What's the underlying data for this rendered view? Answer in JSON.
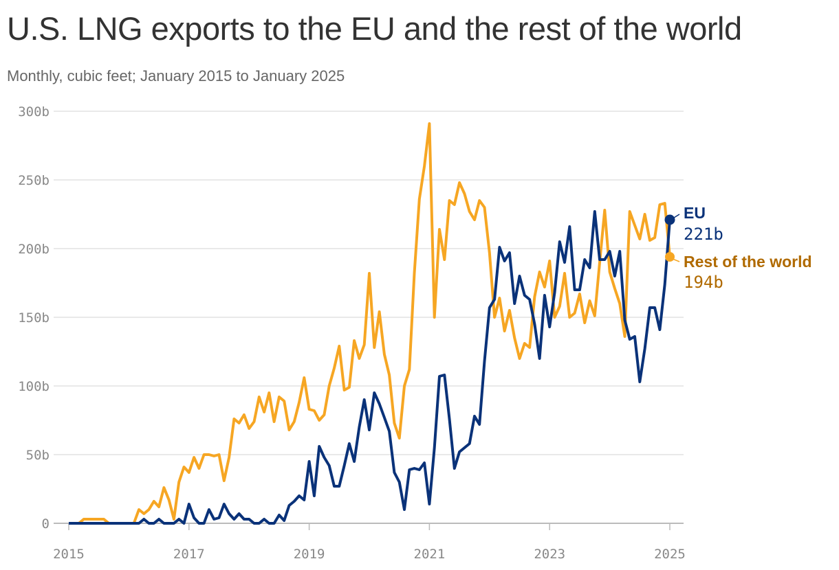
{
  "title": "U.S. LNG exports to the EU and the rest of the world",
  "subtitle": "Monthly, cubic feet; January 2015 to January 2025",
  "colors": {
    "eu": "#0a3279",
    "rest": "#f6a623",
    "rest_label": "#b06a00",
    "grid": "#e2e2e2",
    "axis": "#bbbbbb"
  },
  "chart_data": {
    "type": "line",
    "title": "U.S. LNG exports to the EU and the rest of the world",
    "subtitle": "Monthly, cubic feet; January 2015 to January 2025",
    "x_range": [
      "2015-01",
      "2025-01"
    ],
    "x_ticks": [
      "2015",
      "2017",
      "2019",
      "2021",
      "2023",
      "2025"
    ],
    "ylim": [
      0,
      300
    ],
    "y_ticks": [
      0,
      50,
      100,
      150,
      200,
      250,
      300
    ],
    "y_tick_labels": [
      "0",
      "50b",
      "100b",
      "150b",
      "200b",
      "250b",
      "300b"
    ],
    "grid": true,
    "legend": "direct labels at line ends",
    "series": [
      {
        "name": "EU",
        "end_label": "221b",
        "points": [
          [
            "2015-01",
            0
          ],
          [
            "2015-06",
            0
          ],
          [
            "2015-12",
            0
          ],
          [
            "2016-03",
            0
          ],
          [
            "2016-04",
            3
          ],
          [
            "2016-05",
            0
          ],
          [
            "2016-06",
            0
          ],
          [
            "2016-07",
            3
          ],
          [
            "2016-08",
            0
          ],
          [
            "2016-09",
            0
          ],
          [
            "2016-10",
            0
          ],
          [
            "2016-11",
            3
          ],
          [
            "2016-12",
            0
          ],
          [
            "2017-01",
            14
          ],
          [
            "2017-02",
            4
          ],
          [
            "2017-03",
            0
          ],
          [
            "2017-04",
            0
          ],
          [
            "2017-05",
            10
          ],
          [
            "2017-06",
            3
          ],
          [
            "2017-07",
            4
          ],
          [
            "2017-08",
            14
          ],
          [
            "2017-09",
            7
          ],
          [
            "2017-10",
            3
          ],
          [
            "2017-11",
            7
          ],
          [
            "2017-12",
            3
          ],
          [
            "2018-01",
            3
          ],
          [
            "2018-02",
            0
          ],
          [
            "2018-03",
            0
          ],
          [
            "2018-04",
            3
          ],
          [
            "2018-05",
            0
          ],
          [
            "2018-06",
            0
          ],
          [
            "2018-07",
            6
          ],
          [
            "2018-08",
            2
          ],
          [
            "2018-09",
            13
          ],
          [
            "2018-10",
            16
          ],
          [
            "2018-11",
            20
          ],
          [
            "2018-12",
            17
          ],
          [
            "2019-01",
            45
          ],
          [
            "2019-02",
            20
          ],
          [
            "2019-03",
            56
          ],
          [
            "2019-04",
            48
          ],
          [
            "2019-05",
            42
          ],
          [
            "2019-06",
            27
          ],
          [
            "2019-07",
            27
          ],
          [
            "2019-08",
            42
          ],
          [
            "2019-09",
            58
          ],
          [
            "2019-10",
            45
          ],
          [
            "2019-11",
            70
          ],
          [
            "2019-12",
            90
          ],
          [
            "2020-01",
            68
          ],
          [
            "2020-02",
            95
          ],
          [
            "2020-03",
            87
          ],
          [
            "2020-04",
            77
          ],
          [
            "2020-05",
            67
          ],
          [
            "2020-06",
            37
          ],
          [
            "2020-07",
            30
          ],
          [
            "2020-08",
            10
          ],
          [
            "2020-09",
            39
          ],
          [
            "2020-10",
            40
          ],
          [
            "2020-11",
            39
          ],
          [
            "2020-12",
            44
          ],
          [
            "2021-01",
            14
          ],
          [
            "2021-02",
            55
          ],
          [
            "2021-03",
            107
          ],
          [
            "2021-04",
            108
          ],
          [
            "2021-05",
            76
          ],
          [
            "2021-06",
            40
          ],
          [
            "2021-07",
            52
          ],
          [
            "2021-08",
            55
          ],
          [
            "2021-09",
            58
          ],
          [
            "2021-10",
            78
          ],
          [
            "2021-11",
            72
          ],
          [
            "2021-12",
            118
          ],
          [
            "2022-01",
            157
          ],
          [
            "2022-02",
            163
          ],
          [
            "2022-03",
            201
          ],
          [
            "2022-04",
            191
          ],
          [
            "2022-05",
            197
          ],
          [
            "2022-06",
            160
          ],
          [
            "2022-07",
            180
          ],
          [
            "2022-08",
            166
          ],
          [
            "2022-09",
            163
          ],
          [
            "2022-10",
            145
          ],
          [
            "2022-11",
            120
          ],
          [
            "2022-12",
            166
          ],
          [
            "2023-01",
            143
          ],
          [
            "2023-02",
            168
          ],
          [
            "2023-03",
            205
          ],
          [
            "2023-04",
            190
          ],
          [
            "2023-05",
            216
          ],
          [
            "2023-06",
            170
          ],
          [
            "2023-07",
            170
          ],
          [
            "2023-08",
            192
          ],
          [
            "2023-09",
            186
          ],
          [
            "2023-10",
            227
          ],
          [
            "2023-11",
            192
          ],
          [
            "2023-12",
            192
          ],
          [
            "2024-01",
            198
          ],
          [
            "2024-02",
            180
          ],
          [
            "2024-03",
            198
          ],
          [
            "2024-04",
            148
          ],
          [
            "2024-05",
            134
          ],
          [
            "2024-06",
            136
          ],
          [
            "2024-07",
            103
          ],
          [
            "2024-08",
            127
          ],
          [
            "2024-09",
            157
          ],
          [
            "2024-10",
            157
          ],
          [
            "2024-11",
            141
          ],
          [
            "2024-12",
            174
          ],
          [
            "2025-01",
            221
          ]
        ]
      },
      {
        "name": "Rest of the world",
        "end_label": "194b",
        "points": [
          [
            "2015-01",
            0
          ],
          [
            "2015-03",
            0
          ],
          [
            "2015-04",
            3
          ],
          [
            "2015-08",
            3
          ],
          [
            "2015-09",
            0
          ],
          [
            "2016-01",
            0
          ],
          [
            "2016-02",
            0
          ],
          [
            "2016-03",
            10
          ],
          [
            "2016-04",
            7
          ],
          [
            "2016-05",
            10
          ],
          [
            "2016-06",
            16
          ],
          [
            "2016-07",
            12
          ],
          [
            "2016-08",
            26
          ],
          [
            "2016-09",
            17
          ],
          [
            "2016-10",
            3
          ],
          [
            "2016-11",
            30
          ],
          [
            "2016-12",
            41
          ],
          [
            "2017-01",
            37
          ],
          [
            "2017-02",
            48
          ],
          [
            "2017-03",
            40
          ],
          [
            "2017-04",
            50
          ],
          [
            "2017-05",
            50
          ],
          [
            "2017-06",
            49
          ],
          [
            "2017-07",
            50
          ],
          [
            "2017-08",
            31
          ],
          [
            "2017-09",
            48
          ],
          [
            "2017-10",
            76
          ],
          [
            "2017-11",
            73
          ],
          [
            "2017-12",
            79
          ],
          [
            "2018-01",
            69
          ],
          [
            "2018-02",
            74
          ],
          [
            "2018-03",
            92
          ],
          [
            "2018-04",
            81
          ],
          [
            "2018-05",
            95
          ],
          [
            "2018-06",
            74
          ],
          [
            "2018-07",
            92
          ],
          [
            "2018-08",
            89
          ],
          [
            "2018-09",
            68
          ],
          [
            "2018-10",
            74
          ],
          [
            "2018-11",
            88
          ],
          [
            "2018-12",
            106
          ],
          [
            "2019-01",
            83
          ],
          [
            "2019-02",
            82
          ],
          [
            "2019-03",
            75
          ],
          [
            "2019-04",
            79
          ],
          [
            "2019-05",
            100
          ],
          [
            "2019-06",
            113
          ],
          [
            "2019-07",
            129
          ],
          [
            "2019-08",
            97
          ],
          [
            "2019-09",
            99
          ],
          [
            "2019-10",
            133
          ],
          [
            "2019-11",
            120
          ],
          [
            "2019-12",
            130
          ],
          [
            "2020-01",
            182
          ],
          [
            "2020-02",
            128
          ],
          [
            "2020-03",
            154
          ],
          [
            "2020-04",
            123
          ],
          [
            "2020-05",
            108
          ],
          [
            "2020-06",
            73
          ],
          [
            "2020-07",
            62
          ],
          [
            "2020-08",
            100
          ],
          [
            "2020-09",
            112
          ],
          [
            "2020-10",
            182
          ],
          [
            "2020-11",
            236
          ],
          [
            "2020-12",
            260
          ],
          [
            "2021-01",
            291
          ],
          [
            "2021-02",
            150
          ],
          [
            "2021-03",
            214
          ],
          [
            "2021-04",
            192
          ],
          [
            "2021-05",
            235
          ],
          [
            "2021-06",
            232
          ],
          [
            "2021-07",
            248
          ],
          [
            "2021-08",
            240
          ],
          [
            "2021-09",
            227
          ],
          [
            "2021-10",
            221
          ],
          [
            "2021-11",
            235
          ],
          [
            "2021-12",
            230
          ],
          [
            "2022-01",
            197
          ],
          [
            "2022-02",
            150
          ],
          [
            "2022-03",
            164
          ],
          [
            "2022-04",
            140
          ],
          [
            "2022-05",
            155
          ],
          [
            "2022-06",
            135
          ],
          [
            "2022-07",
            120
          ],
          [
            "2022-08",
            131
          ],
          [
            "2022-09",
            128
          ],
          [
            "2022-10",
            165
          ],
          [
            "2022-11",
            183
          ],
          [
            "2022-12",
            172
          ],
          [
            "2023-01",
            191
          ],
          [
            "2023-02",
            150
          ],
          [
            "2023-03",
            158
          ],
          [
            "2023-04",
            182
          ],
          [
            "2023-05",
            150
          ],
          [
            "2023-06",
            153
          ],
          [
            "2023-07",
            167
          ],
          [
            "2023-08",
            146
          ],
          [
            "2023-09",
            162
          ],
          [
            "2023-10",
            151
          ],
          [
            "2023-11",
            190
          ],
          [
            "2023-12",
            228
          ],
          [
            "2024-01",
            183
          ],
          [
            "2024-02",
            171
          ],
          [
            "2024-03",
            160
          ],
          [
            "2024-04",
            136
          ],
          [
            "2024-05",
            227
          ],
          [
            "2024-06",
            217
          ],
          [
            "2024-07",
            207
          ],
          [
            "2024-08",
            225
          ],
          [
            "2024-09",
            206
          ],
          [
            "2024-10",
            208
          ],
          [
            "2024-11",
            232
          ],
          [
            "2024-12",
            233
          ],
          [
            "2025-01",
            194
          ]
        ]
      }
    ]
  }
}
